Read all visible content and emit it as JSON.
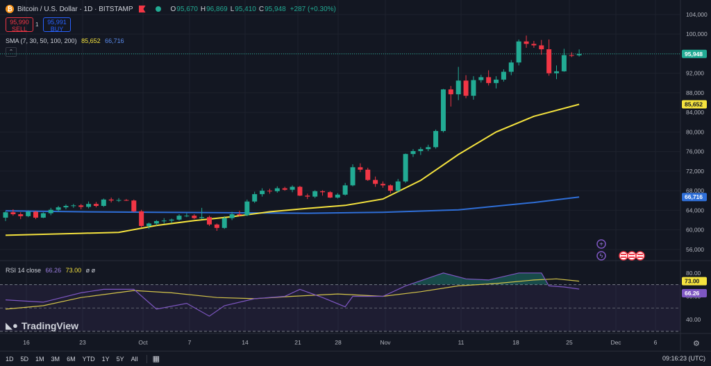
{
  "header": {
    "coin_glyph": "₿",
    "title": "Bitcoin / U.S. Dollar · 1D · BITSTAMP",
    "ohlc": [
      {
        "label": "O",
        "value": "95,670"
      },
      {
        "label": "H",
        "value": "96,869"
      },
      {
        "label": "L",
        "value": "95,410"
      },
      {
        "label": "C",
        "value": "95,948"
      }
    ],
    "change": "+287 (+0.30%)"
  },
  "trade": {
    "sell_price": "95,990",
    "sell_label": "SELL",
    "buy_price": "95,991",
    "buy_label": "BUY",
    "spread": "1"
  },
  "sma_legend": {
    "label": "SMA (7, 30, 50, 100, 200)",
    "v1": "85,652",
    "v2": "66,716"
  },
  "rsi_legend": {
    "label": "RSI 14 close",
    "v1": "66.26",
    "v2": "73.00",
    "extra": "ø ø"
  },
  "logo": {
    "text": "TradingView"
  },
  "range_buttons": [
    "1D",
    "5D",
    "1M",
    "3M",
    "6M",
    "YTD",
    "1Y",
    "5Y",
    "All"
  ],
  "clock": "09:16:23 (UTC)",
  "colors": {
    "background": "#131722",
    "up": "#22ab94",
    "down": "#f23645",
    "sma_yellow": "#f5e33e",
    "sma_blue": "#2f6fd8",
    "rsi_line": "#7e57c2",
    "rsi_ma": "#d5c54a"
  },
  "chart_data": [
    {
      "type": "candlestick",
      "title": "Bitcoin / U.S. Dollar · 1D · BITSTAMP",
      "y_axis_ticks": [
        56000,
        60000,
        64000,
        68000,
        72000,
        76000,
        80000,
        84000,
        88000,
        92000,
        96000,
        100000,
        104000
      ],
      "y_axis_labels": [
        "56,000",
        "60,000",
        "64,000",
        "68,000",
        "72,000",
        "76,000",
        "80,000",
        "84,000",
        "88,000",
        "92,000",
        "96,000",
        "100,000",
        "104,000"
      ],
      "x_axis_labels": [
        "16",
        "23",
        "Oct",
        "7",
        "14",
        "21",
        "28",
        "Nov",
        "11",
        "18",
        "25",
        "Dec",
        "6"
      ],
      "start_date": "2024-09-12",
      "candles": [
        [
          62500,
          63800,
          61800,
          63600
        ],
        [
          63600,
          64200,
          62900,
          63200
        ],
        [
          63200,
          63600,
          62200,
          62800
        ],
        [
          62800,
          64000,
          62600,
          63700
        ],
        [
          63700,
          63900,
          62200,
          62500
        ],
        [
          62500,
          63600,
          62400,
          63400
        ],
        [
          63400,
          64500,
          63000,
          64100
        ],
        [
          64100,
          64900,
          63700,
          64600
        ],
        [
          64600,
          65200,
          64200,
          64900
        ],
        [
          64900,
          65300,
          64500,
          65000
        ],
        [
          65000,
          65300,
          64200,
          64700
        ],
        [
          64700,
          65800,
          64400,
          65300
        ],
        [
          65300,
          65700,
          64600,
          64900
        ],
        [
          64900,
          66400,
          64700,
          66200
        ],
        [
          66200,
          66600,
          65600,
          66000
        ],
        [
          66000,
          66500,
          65700,
          66100
        ],
        [
          66100,
          66300,
          65900,
          66000
        ],
        [
          66000,
          66200,
          63600,
          63800
        ],
        [
          63800,
          64100,
          60500,
          60800
        ],
        [
          60800,
          61500,
          60200,
          61300
        ],
        [
          61300,
          62000,
          60900,
          61800
        ],
        [
          61800,
          62400,
          61300,
          61900
        ],
        [
          61900,
          62300,
          61400,
          62100
        ],
        [
          62100,
          63200,
          61900,
          62900
        ],
        [
          62900,
          63400,
          62600,
          62900
        ],
        [
          62900,
          63200,
          62200,
          62400
        ],
        [
          62400,
          64500,
          62200,
          62600
        ],
        [
          62600,
          62900,
          60800,
          61100
        ],
        [
          61100,
          61300,
          59800,
          60400
        ],
        [
          60400,
          62800,
          60200,
          62400
        ],
        [
          62400,
          63700,
          62000,
          63200
        ],
        [
          63200,
          63900,
          62800,
          63000
        ],
        [
          63000,
          66200,
          62800,
          65800
        ],
        [
          65800,
          67800,
          65500,
          67300
        ],
        [
          67300,
          68500,
          66800,
          68000
        ],
        [
          68000,
          68400,
          67400,
          67900
        ],
        [
          67900,
          68900,
          67600,
          68500
        ],
        [
          68500,
          68800,
          68000,
          68200
        ],
        [
          68200,
          69100,
          67700,
          68800
        ],
        [
          68800,
          69000,
          66900,
          67000
        ],
        [
          67000,
          67400,
          66300,
          66800
        ],
        [
          66800,
          68100,
          66500,
          67900
        ],
        [
          67900,
          68100,
          67000,
          67700
        ],
        [
          67700,
          67900,
          66500,
          66600
        ],
        [
          66600,
          67500,
          66400,
          67200
        ],
        [
          67200,
          69600,
          67000,
          69100
        ],
        [
          69100,
          73400,
          68900,
          72800
        ],
        [
          72800,
          73600,
          71800,
          72300
        ],
        [
          72300,
          72700,
          70000,
          70200
        ],
        [
          70200,
          70900,
          68800,
          69400
        ],
        [
          69400,
          69900,
          68600,
          69100
        ],
        [
          69100,
          69300,
          67500,
          68000
        ],
        [
          68000,
          70400,
          67600,
          69900
        ],
        [
          69900,
          75600,
          69600,
          75500
        ],
        [
          75500,
          76500,
          74900,
          76100
        ],
        [
          76100,
          76900,
          75300,
          76500
        ],
        [
          76500,
          77400,
          76100,
          76900
        ],
        [
          76900,
          80500,
          76600,
          80200
        ],
        [
          80200,
          88800,
          79900,
          88700
        ],
        [
          88700,
          89400,
          85200,
          87700
        ],
        [
          87700,
          93300,
          86500,
          90500
        ],
        [
          90500,
          91600,
          86900,
          87400
        ],
        [
          87400,
          91400,
          86600,
          90600
        ],
        [
          90600,
          91700,
          90100,
          91200
        ],
        [
          91200,
          92600,
          89500,
          90000
        ],
        [
          90000,
          91400,
          88900,
          90700
        ],
        [
          90700,
          92800,
          90300,
          92300
        ],
        [
          92300,
          94700,
          91600,
          94200
        ],
        [
          94200,
          98900,
          93600,
          98500
        ],
        [
          98500,
          99700,
          97200,
          98000
        ],
        [
          98000,
          98600,
          97200,
          97700
        ],
        [
          97700,
          98800,
          95800,
          96900
        ],
        [
          96900,
          98900,
          91500,
          92000
        ],
        [
          92000,
          93600,
          90800,
          92400
        ],
        [
          92400,
          97000,
          92300,
          95700
        ],
        [
          95700,
          96300,
          95300,
          95661
        ],
        [
          95670,
          96869,
          95410,
          95948
        ]
      ],
      "sma_short": {
        "label_value": "85,652",
        "x_index": [
          0,
          5,
          10,
          15,
          20,
          25,
          30,
          35,
          40,
          45,
          50,
          55,
          60,
          65,
          70,
          76
        ],
        "values": [
          58900,
          59100,
          59300,
          59500,
          60900,
          61900,
          62700,
          63700,
          64400,
          65000,
          66300,
          70100,
          75400,
          80000,
          83200,
          85652
        ]
      },
      "sma_long": {
        "label_value": "66,716",
        "x_index": [
          0,
          10,
          20,
          30,
          40,
          50,
          60,
          70,
          76
        ],
        "values": [
          63900,
          63700,
          63600,
          63500,
          63400,
          63600,
          64100,
          65600,
          66716
        ]
      },
      "last_price": "95,948"
    },
    {
      "type": "line",
      "title": "RSI 14 close",
      "y_axis_labels": [
        "40.00",
        "60.00",
        "80.00"
      ],
      "bands": [
        30,
        70
      ],
      "rsi": {
        "label_value": "66.26",
        "x_index": [
          0,
          5,
          10,
          13,
          17,
          20,
          24,
          27,
          29,
          33,
          37,
          39,
          42,
          45,
          46,
          50,
          53,
          58,
          61,
          64,
          68,
          71,
          72,
          74,
          76
        ],
        "values": [
          57,
          55,
          63,
          66,
          66,
          49,
          54,
          43,
          52,
          58,
          60,
          66,
          59,
          51,
          60,
          60,
          69,
          80,
          75,
          74,
          80,
          80,
          69,
          68,
          66.26
        ]
      },
      "rsi_ma": {
        "label_value": "73.00",
        "x_index": [
          0,
          5,
          10,
          17,
          22,
          28,
          33,
          38,
          44,
          50,
          55,
          60,
          65,
          70,
          73,
          76
        ],
        "values": [
          49,
          52,
          59,
          65,
          63,
          59,
          58,
          60,
          62,
          60,
          64,
          69,
          71,
          74,
          75,
          73
        ]
      }
    }
  ]
}
